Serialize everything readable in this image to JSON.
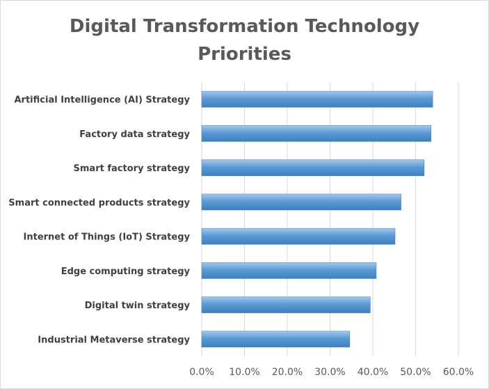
{
  "chart_data": {
    "type": "bar",
    "orientation": "horizontal",
    "title": "Digital Transformation Technology Priorities",
    "title_lines": [
      "Digital Transformation Technology",
      "Priorities"
    ],
    "xlabel": "",
    "ylabel": "",
    "categories": [
      "Artificial Intelligence (AI) Strategy",
      "Factory data strategy",
      "Smart factory strategy",
      "Smart connected products strategy",
      "Internet of Things (IoT) Strategy",
      "Edge computing strategy",
      "Digital twin strategy",
      "Industrial Metaverse strategy"
    ],
    "values": [
      0.54,
      0.536,
      0.52,
      0.466,
      0.452,
      0.408,
      0.394,
      0.346
    ],
    "xlim": [
      0,
      0.6
    ],
    "x_ticks": [
      0,
      0.1,
      0.2,
      0.3,
      0.4,
      0.5,
      0.6
    ],
    "x_tick_labels": [
      "0.0%",
      "10.0%",
      "20.0%",
      "30.0%",
      "40.0%",
      "50.0%",
      "60.0%"
    ],
    "grid": true,
    "legend": "none",
    "bar_color": "#5b9bd5"
  }
}
